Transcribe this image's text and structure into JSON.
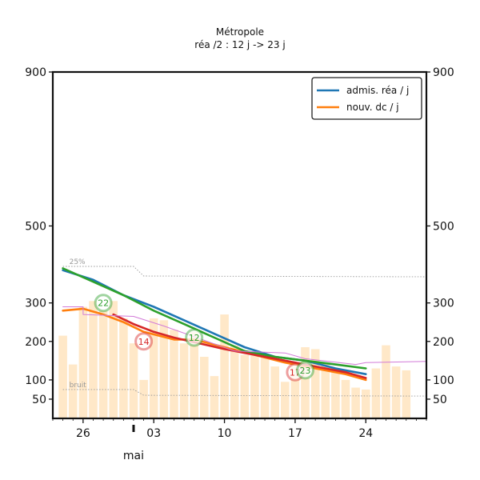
{
  "chart_data": {
    "type": "line",
    "title": "Métropole",
    "subtitle": "réa /2 : 12 j -> 23 j",
    "xlabel": "mai",
    "ylabel": "",
    "ylim": [
      0,
      900
    ],
    "xlim": [
      "2020-04-23",
      "2020-05-30"
    ],
    "x_ticks": [
      {
        "date": "2020-04-26",
        "label": "26"
      },
      {
        "date": "2020-05-03",
        "label": "03"
      },
      {
        "date": "2020-05-10",
        "label": "10"
      },
      {
        "date": "2020-05-17",
        "label": "17"
      },
      {
        "date": "2020-05-24",
        "label": "24"
      }
    ],
    "month_marker": {
      "date": "2020-05-01",
      "label": "mai"
    },
    "y_ticks": [
      50,
      100,
      200,
      300,
      500,
      900
    ],
    "grid": false,
    "legend_position": "top-right",
    "legend": [
      {
        "label": "admis. réa / j",
        "color": "#1f77b4"
      },
      {
        "label": "nouv. dc / j",
        "color": "#ff7f0e"
      }
    ],
    "reference_lines": [
      {
        "label": "25%",
        "points": [
          [
            "2020-04-24",
            395
          ],
          [
            "2020-05-01",
            395
          ],
          [
            "2020-05-02",
            370
          ],
          [
            "2020-05-30",
            368
          ]
        ]
      },
      {
        "label": "bruit",
        "points": [
          [
            "2020-04-24",
            75
          ],
          [
            "2020-05-01",
            75
          ],
          [
            "2020-05-02",
            60
          ],
          [
            "2020-05-30",
            58
          ]
        ]
      }
    ],
    "bars": {
      "color": "#ffe8c8",
      "values": [
        {
          "date": "2020-04-24",
          "value": 215
        },
        {
          "date": "2020-04-25",
          "value": 140
        },
        {
          "date": "2020-04-26",
          "value": 290
        },
        {
          "date": "2020-04-27",
          "value": 305
        },
        {
          "date": "2020-04-28",
          "value": 280
        },
        {
          "date": "2020-04-29",
          "value": 305
        },
        {
          "date": "2020-04-30",
          "value": 260
        },
        {
          "date": "2020-05-01",
          "value": 195
        },
        {
          "date": "2020-05-02",
          "value": 100
        },
        {
          "date": "2020-05-03",
          "value": 260
        },
        {
          "date": "2020-05-04",
          "value": 255
        },
        {
          "date": "2020-05-05",
          "value": 230
        },
        {
          "date": "2020-05-06",
          "value": 195
        },
        {
          "date": "2020-05-07",
          "value": 225
        },
        {
          "date": "2020-05-08",
          "value": 160
        },
        {
          "date": "2020-05-09",
          "value": 110
        },
        {
          "date": "2020-05-10",
          "value": 270
        },
        {
          "date": "2020-05-11",
          "value": 190
        },
        {
          "date": "2020-05-12",
          "value": 165
        },
        {
          "date": "2020-05-13",
          "value": 175
        },
        {
          "date": "2020-05-14",
          "value": 160
        },
        {
          "date": "2020-05-15",
          "value": 135
        },
        {
          "date": "2020-05-16",
          "value": 95
        },
        {
          "date": "2020-05-17",
          "value": 145
        },
        {
          "date": "2020-05-18",
          "value": 185
        },
        {
          "date": "2020-05-19",
          "value": 180
        },
        {
          "date": "2020-05-20",
          "value": 145
        },
        {
          "date": "2020-05-21",
          "value": 125
        },
        {
          "date": "2020-05-22",
          "value": 100
        },
        {
          "date": "2020-05-23",
          "value": 80
        },
        {
          "date": "2020-05-24",
          "value": 75
        },
        {
          "date": "2020-05-25",
          "value": 130
        },
        {
          "date": "2020-05-26",
          "value": 190
        },
        {
          "date": "2020-05-27",
          "value": 135
        },
        {
          "date": "2020-05-28",
          "value": 125
        }
      ]
    },
    "series": [
      {
        "name": "admis. réa / j",
        "color": "#1f77b4",
        "points": [
          [
            "2020-04-24",
            385
          ],
          [
            "2020-04-27",
            360
          ],
          [
            "2020-04-30",
            320
          ],
          [
            "2020-05-03",
            290
          ],
          [
            "2020-05-06",
            255
          ],
          [
            "2020-05-09",
            220
          ],
          [
            "2020-05-12",
            185
          ],
          [
            "2020-05-15",
            160
          ],
          [
            "2020-05-18",
            150
          ],
          [
            "2020-05-21",
            130
          ],
          [
            "2020-05-24",
            115
          ]
        ]
      },
      {
        "name": "nouv. dc / j",
        "color": "#ff7f0e",
        "points": [
          [
            "2020-04-24",
            280
          ],
          [
            "2020-04-26",
            285
          ],
          [
            "2020-04-28",
            270
          ],
          [
            "2020-04-30",
            250
          ],
          [
            "2020-05-02",
            225
          ],
          [
            "2020-05-05",
            205
          ],
          [
            "2020-05-07",
            205
          ],
          [
            "2020-05-10",
            185
          ],
          [
            "2020-05-13",
            165
          ],
          [
            "2020-05-16",
            145
          ],
          [
            "2020-05-19",
            130
          ],
          [
            "2020-05-22",
            115
          ],
          [
            "2020-05-24",
            100
          ]
        ]
      },
      {
        "color": "#2ca02c",
        "points": [
          [
            "2020-04-24",
            390
          ],
          [
            "2020-04-27",
            355
          ],
          [
            "2020-04-30",
            320
          ],
          [
            "2020-05-03",
            280
          ],
          [
            "2020-05-06",
            245
          ],
          [
            "2020-05-09",
            210
          ],
          [
            "2020-05-12",
            175
          ],
          [
            "2020-05-15",
            160
          ],
          [
            "2020-05-18",
            150
          ],
          [
            "2020-05-21",
            140
          ],
          [
            "2020-05-24",
            130
          ]
        ]
      },
      {
        "color": "#d62728",
        "points": [
          [
            "2020-04-29",
            270
          ],
          [
            "2020-05-01",
            245
          ],
          [
            "2020-05-03",
            225
          ],
          [
            "2020-05-05",
            210
          ],
          [
            "2020-05-10",
            180
          ],
          [
            "2020-05-13",
            165
          ],
          [
            "2020-05-16",
            150
          ],
          [
            "2020-05-19",
            135
          ],
          [
            "2020-05-22",
            120
          ],
          [
            "2020-05-24",
            105
          ]
        ]
      },
      {
        "color": "#d27ad8",
        "points": [
          [
            "2020-04-24",
            290
          ],
          [
            "2020-04-26",
            290
          ],
          [
            "2020-04-26",
            270
          ],
          [
            "2020-05-01",
            265
          ],
          [
            "2020-05-04",
            240
          ],
          [
            "2020-05-11",
            175
          ],
          [
            "2020-05-16",
            170
          ],
          [
            "2020-05-18",
            155
          ],
          [
            "2020-05-23",
            140
          ],
          [
            "2020-05-24",
            145
          ],
          [
            "2020-05-30",
            148
          ]
        ]
      }
    ],
    "annotations": [
      {
        "label": "22",
        "date": "2020-04-28",
        "value": 300,
        "color": "#2ca02c"
      },
      {
        "label": "14",
        "date": "2020-05-02",
        "value": 200,
        "color": "#d62728"
      },
      {
        "label": "12",
        "date": "2020-05-07",
        "value": 210,
        "color": "#2ca02c"
      },
      {
        "label": "17",
        "date": "2020-05-17",
        "value": 120,
        "color": "#d62728"
      },
      {
        "label": "23",
        "date": "2020-05-18",
        "value": 125,
        "color": "#2ca02c"
      }
    ]
  }
}
